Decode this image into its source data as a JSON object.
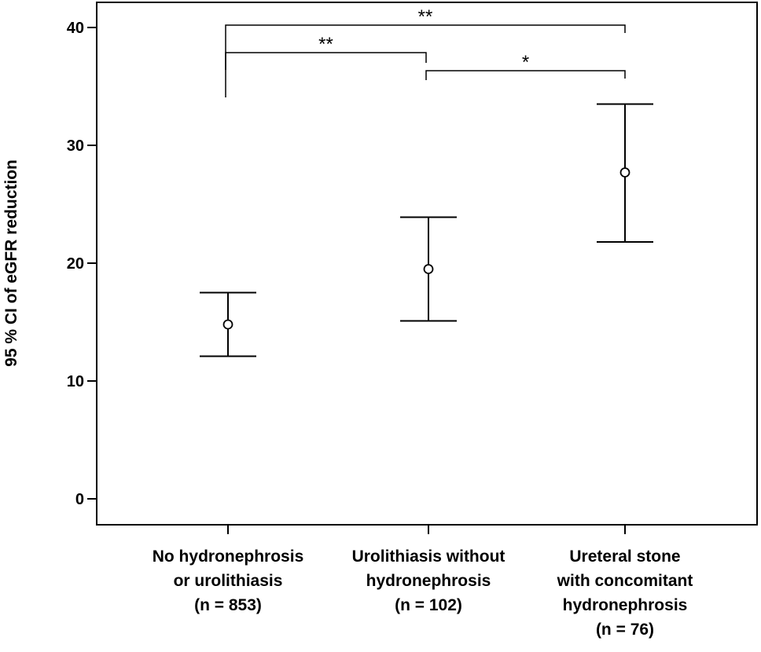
{
  "chart_data": {
    "type": "errorbar",
    "title": "",
    "xlabel": "",
    "ylabel": "95 % CI of eGFR reduction",
    "ylim": [
      0,
      40
    ],
    "yticks": [
      0,
      10,
      20,
      30,
      40
    ],
    "grid": false,
    "legend": "none",
    "categories": [
      [
        "No hydronephrosis",
        "or urolithiasis",
        "(n = 853)"
      ],
      [
        "Urolithiasis without",
        "hydronephrosis",
        "(n = 102)"
      ],
      [
        "Ureteral stone",
        "with concomitant",
        "hydronephrosis",
        "(n = 76)"
      ]
    ],
    "points": [
      {
        "mean": 14.8,
        "lower": 12.1,
        "upper": 17.5
      },
      {
        "mean": 19.5,
        "lower": 15.1,
        "upper": 23.9
      },
      {
        "mean": 27.7,
        "lower": 21.8,
        "upper": 33.5
      }
    ],
    "significance": [
      {
        "from": 0,
        "to": 2,
        "label": "**"
      },
      {
        "from": 0,
        "to": 1,
        "label": "**"
      },
      {
        "from": 1,
        "to": 2,
        "label": "*"
      }
    ]
  }
}
